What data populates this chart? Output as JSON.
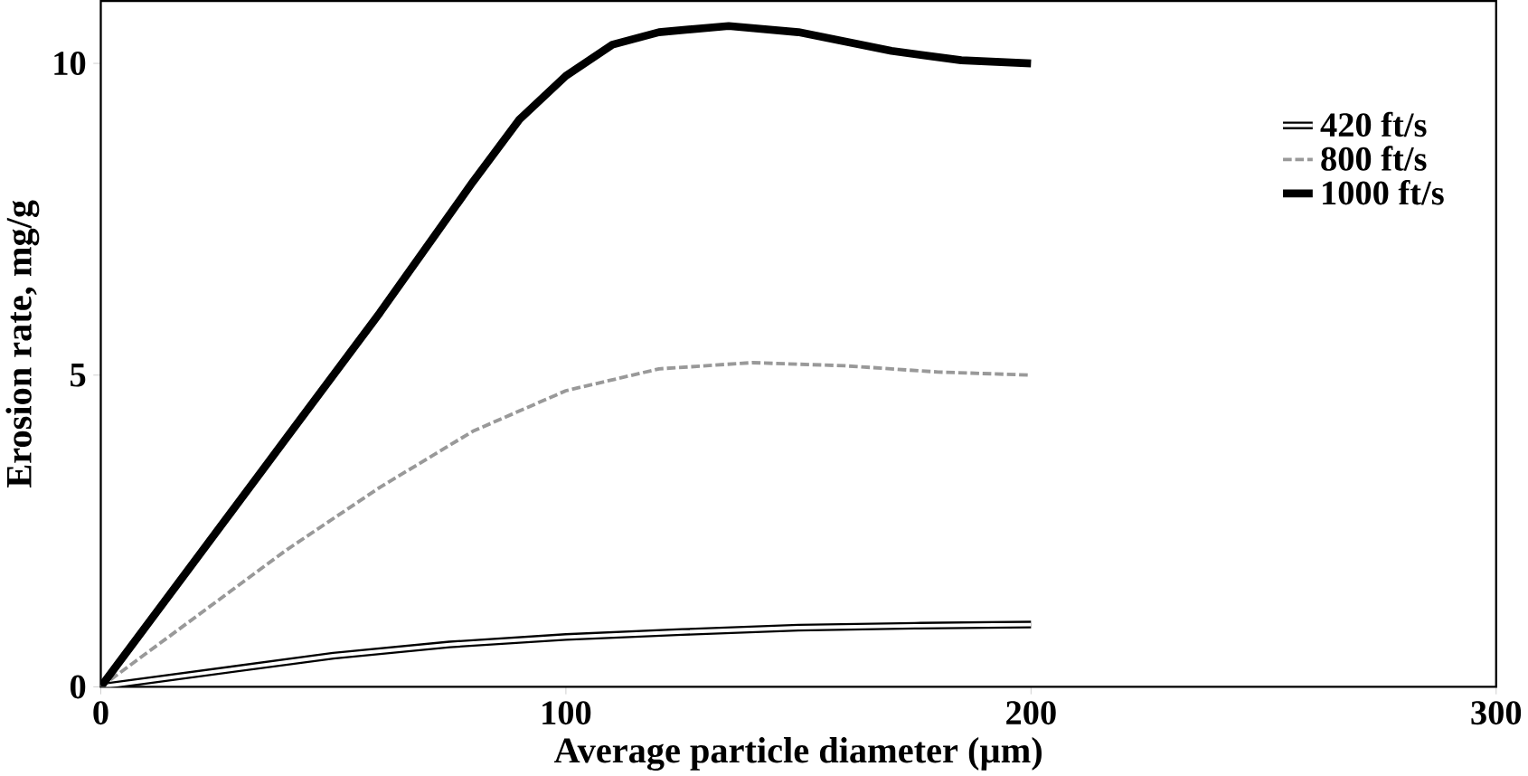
{
  "chart_data": {
    "type": "line",
    "xlabel": "Average particle diameter (µm)",
    "ylabel": "Erosion rate, mg/g",
    "xlim": [
      0,
      300
    ],
    "ylim": [
      0,
      11
    ],
    "xticks": [
      0,
      100,
      200,
      300
    ],
    "yticks": [
      0,
      5,
      10
    ],
    "grid": false,
    "legend": "top right",
    "marker": "none",
    "series": [
      {
        "name": "420 ft/s",
        "color": "#000000",
        "line_style": "solid",
        "x": [
          0,
          20,
          50,
          75,
          100,
          125,
          150,
          175,
          200
        ],
        "values": [
          0,
          0.2,
          0.5,
          0.68,
          0.8,
          0.88,
          0.95,
          0.98,
          1.0
        ]
      },
      {
        "name": "800 ft/s",
        "color": "#999999",
        "line_style": "dashed",
        "x": [
          0,
          20,
          40,
          60,
          80,
          100,
          120,
          140,
          160,
          180,
          200
        ],
        "values": [
          0,
          1.1,
          2.2,
          3.2,
          4.1,
          4.75,
          5.1,
          5.2,
          5.15,
          5.05,
          5.0
        ]
      },
      {
        "name": "1000 ft/s",
        "color": "#000000",
        "line_style": "solid",
        "x": [
          0,
          20,
          40,
          60,
          80,
          90,
          100,
          110,
          120,
          135,
          150,
          170,
          185,
          200
        ],
        "values": [
          0,
          2.0,
          4.0,
          6.0,
          8.1,
          9.1,
          9.8,
          10.3,
          10.5,
          10.6,
          10.5,
          10.2,
          10.05,
          10.0
        ]
      }
    ]
  }
}
